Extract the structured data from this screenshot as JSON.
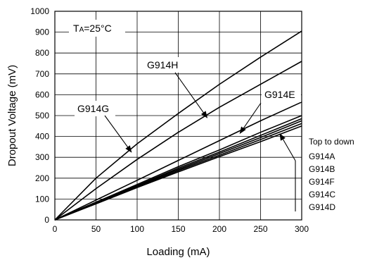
{
  "chart_data": {
    "type": "line",
    "title": "",
    "xlabel": "Loading (mA)",
    "ylabel": "Dropout Voltage (mV)",
    "xlim": [
      0,
      300
    ],
    "ylim": [
      0,
      1000
    ],
    "xticks": [
      "0",
      "50",
      "100",
      "150",
      "200",
      "250",
      "300"
    ],
    "yticks": [
      "0",
      "100",
      "200",
      "300",
      "400",
      "500",
      "600",
      "700",
      "800",
      "900",
      "1000"
    ],
    "grid": true,
    "legend": "none",
    "condition_prefix": "T",
    "condition_sub": "A",
    "condition_rest": "=25°C",
    "series": [
      {
        "name": "G914G",
        "x": [
          0,
          50,
          100,
          150,
          200,
          250,
          300
        ],
        "values": [
          0,
          200,
          365,
          510,
          650,
          780,
          905
        ]
      },
      {
        "name": "G914H",
        "x": [
          0,
          50,
          100,
          150,
          200,
          250,
          300
        ],
        "values": [
          0,
          150,
          290,
          420,
          540,
          650,
          760
        ]
      },
      {
        "name": "G914E",
        "x": [
          0,
          50,
          100,
          150,
          200,
          250,
          300
        ],
        "values": [
          0,
          95,
          190,
          285,
          380,
          475,
          565
        ]
      },
      {
        "name": "G914A",
        "x": [
          0,
          50,
          100,
          150,
          200,
          250,
          300
        ],
        "values": [
          0,
          85,
          170,
          255,
          335,
          420,
          500
        ]
      },
      {
        "name": "G914B",
        "x": [
          0,
          50,
          100,
          150,
          200,
          250,
          300
        ],
        "values": [
          0,
          83,
          165,
          248,
          325,
          405,
          485
        ]
      },
      {
        "name": "G914F",
        "x": [
          0,
          50,
          100,
          150,
          200,
          250,
          300
        ],
        "values": [
          0,
          81,
          162,
          242,
          318,
          395,
          475
        ]
      },
      {
        "name": "G914C",
        "x": [
          0,
          50,
          100,
          150,
          200,
          250,
          300
        ],
        "values": [
          0,
          79,
          158,
          236,
          310,
          385,
          462
        ]
      },
      {
        "name": "G914D",
        "x": [
          0,
          50,
          100,
          150,
          200,
          250,
          300
        ],
        "values": [
          0,
          77,
          155,
          230,
          303,
          375,
          450
        ]
      }
    ],
    "annotations": {
      "top_to_down_caption": "Top to down",
      "order_list": [
        "G914A",
        "G914B",
        "G914F",
        "G914C",
        "G914D"
      ]
    }
  }
}
